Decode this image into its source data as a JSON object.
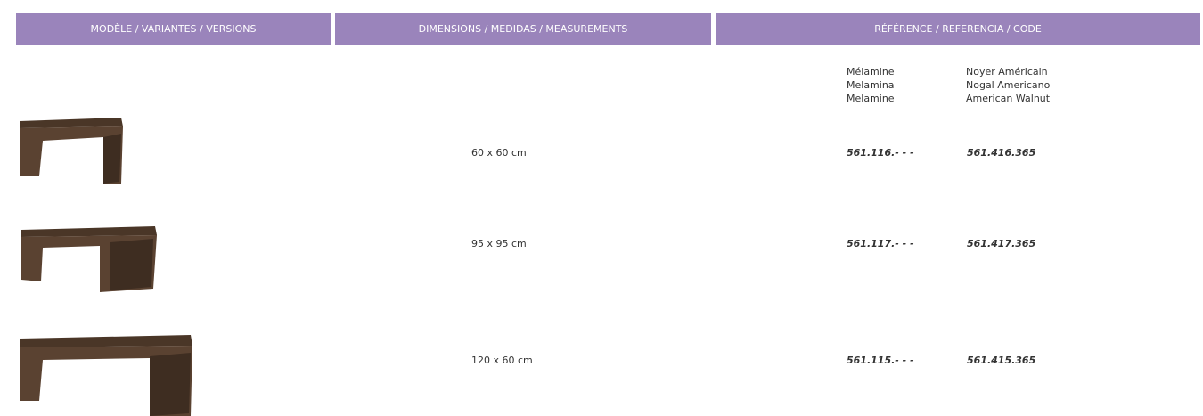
{
  "header": {
    "columns": [
      "MODÈLE / VARIANTES / VERSIONS",
      "DIMENSIONS / MEDIDAS / MEASUREMENTS",
      "RÉFÉRENCE / REFERENCIA / CODE"
    ]
  },
  "finishes": [
    {
      "lines": [
        "Mélamine",
        "Melamina",
        "Melamine"
      ]
    },
    {
      "lines": [
        "Noyer Américain",
        "Nogal Americano",
        "American Walnut"
      ]
    }
  ],
  "rows": [
    {
      "dimensions": "60 x 60 cm",
      "codes": [
        "561.116.- - -",
        "561.416.365"
      ]
    },
    {
      "dimensions": "95 x 95 cm",
      "codes": [
        "561.117.- - -",
        "561.417.365"
      ]
    },
    {
      "dimensions": "120 x 60 cm",
      "codes": [
        "561.115.- - -",
        "561.415.365"
      ]
    }
  ]
}
